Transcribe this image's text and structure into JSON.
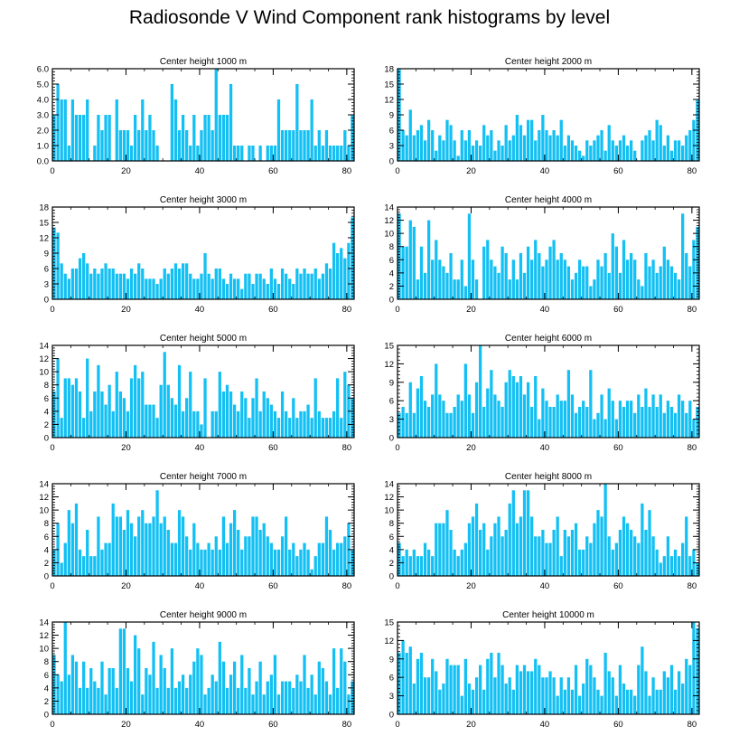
{
  "title": "Radiosonde V Wind Component rank histograms by level",
  "colors": {
    "bar": "#13c0f4",
    "bar_edge": "#0f9fce",
    "axis": "#000000"
  },
  "chart_data": [
    {
      "type": "bar",
      "title": "Center height 1000 m",
      "xlim": [
        0,
        82
      ],
      "ylim": [
        0,
        6
      ],
      "xticks": [
        0,
        20,
        40,
        60,
        80
      ],
      "yticks": [
        0,
        1,
        2,
        3,
        4,
        5,
        6
      ],
      "yticklabels": [
        "0.0",
        "1.0",
        "2.0",
        "3.0",
        "4.0",
        "5.0",
        "6.0"
      ],
      "values": [
        3,
        5,
        4,
        4,
        1,
        4,
        3,
        3,
        3,
        4,
        0,
        1,
        3,
        2,
        3,
        3,
        0,
        4,
        2,
        2,
        2,
        1,
        3,
        2,
        4,
        2,
        3,
        2,
        1,
        0,
        0,
        0,
        5,
        4,
        2,
        3,
        2,
        1,
        3,
        1,
        2,
        3,
        3,
        2,
        6,
        3,
        3,
        3,
        5,
        1,
        1,
        1,
        0,
        1,
        1,
        0,
        1,
        0,
        1,
        1,
        1,
        4,
        2,
        2,
        2,
        2,
        5,
        2,
        2,
        2,
        4,
        1,
        2,
        1,
        2,
        1,
        1,
        1,
        1,
        2,
        1,
        3
      ]
    },
    {
      "type": "bar",
      "title": "Center height 2000 m",
      "xlim": [
        0,
        82
      ],
      "ylim": [
        0,
        18
      ],
      "xticks": [
        0,
        20,
        40,
        60,
        80
      ],
      "yticks": [
        0,
        3,
        6,
        9,
        12,
        15,
        18
      ],
      "yticklabels": [
        "0",
        "3",
        "6",
        "9",
        "12",
        "15",
        "18"
      ],
      "values": [
        18,
        6,
        5,
        10,
        5,
        6,
        7,
        4,
        8,
        6,
        2,
        5,
        4,
        8,
        7,
        4,
        1,
        6,
        4,
        6,
        3,
        4,
        3,
        7,
        5,
        6,
        2,
        4,
        3,
        7,
        4,
        5,
        9,
        7,
        5,
        8,
        8,
        4,
        6,
        9,
        6,
        5,
        6,
        5,
        8,
        3,
        5,
        4,
        3,
        2,
        1,
        4,
        3,
        4,
        5,
        6,
        2,
        7,
        4,
        3,
        4,
        5,
        3,
        4,
        2,
        0,
        4,
        5,
        6,
        4,
        8,
        7,
        3,
        5,
        2,
        4,
        4,
        3,
        5,
        6,
        8,
        12
      ]
    },
    {
      "type": "bar",
      "title": "Center height 3000 m",
      "xlim": [
        0,
        82
      ],
      "ylim": [
        0,
        18
      ],
      "xticks": [
        0,
        20,
        40,
        60,
        80
      ],
      "yticks": [
        0,
        3,
        6,
        9,
        12,
        15,
        18
      ],
      "yticklabels": [
        "0",
        "3",
        "6",
        "9",
        "12",
        "15",
        "18"
      ],
      "values": [
        14,
        13,
        7,
        5,
        4,
        6,
        6,
        8,
        9,
        7,
        5,
        6,
        5,
        6,
        7,
        6,
        6,
        5,
        5,
        5,
        4,
        6,
        5,
        7,
        6,
        4,
        4,
        4,
        3,
        4,
        6,
        5,
        6,
        7,
        6,
        7,
        7,
        5,
        4,
        4,
        5,
        9,
        5,
        4,
        6,
        6,
        4,
        3,
        5,
        4,
        4,
        2,
        5,
        5,
        3,
        5,
        5,
        4,
        3,
        6,
        4,
        3,
        6,
        5,
        4,
        3,
        6,
        5,
        6,
        5,
        5,
        6,
        4,
        5,
        7,
        6,
        11,
        9,
        10,
        8,
        11,
        16
      ]
    },
    {
      "type": "bar",
      "title": "Center height 4000 m",
      "xlim": [
        0,
        82
      ],
      "ylim": [
        0,
        14
      ],
      "xticks": [
        0,
        20,
        40,
        60,
        80
      ],
      "yticks": [
        0,
        2,
        4,
        6,
        8,
        10,
        12,
        14
      ],
      "yticklabels": [
        "0",
        "2",
        "4",
        "6",
        "8",
        "10",
        "12",
        "14"
      ],
      "values": [
        13,
        8,
        8,
        12,
        11,
        3,
        8,
        4,
        12,
        6,
        9,
        6,
        5,
        4,
        7,
        3,
        3,
        6,
        2,
        13,
        6,
        3,
        0,
        8,
        9,
        6,
        5,
        4,
        8,
        7,
        3,
        6,
        3,
        7,
        4,
        8,
        6,
        9,
        7,
        5,
        6,
        8,
        9,
        6,
        7,
        6,
        5,
        3,
        4,
        6,
        5,
        5,
        2,
        3,
        6,
        5,
        7,
        4,
        10,
        8,
        4,
        9,
        6,
        7,
        6,
        3,
        2,
        7,
        5,
        6,
        4,
        5,
        8,
        6,
        5,
        4,
        3,
        13,
        7,
        5,
        9,
        11
      ]
    },
    {
      "type": "bar",
      "title": "Center height 5000 m",
      "xlim": [
        0,
        82
      ],
      "ylim": [
        0,
        14
      ],
      "xticks": [
        0,
        20,
        40,
        60,
        80
      ],
      "yticks": [
        0,
        2,
        4,
        6,
        8,
        10,
        12,
        14
      ],
      "yticklabels": [
        "0",
        "2",
        "4",
        "6",
        "8",
        "10",
        "12",
        "14"
      ],
      "values": [
        7,
        12,
        3,
        9,
        9,
        8,
        9,
        7,
        3,
        12,
        4,
        7,
        11,
        7,
        5,
        8,
        4,
        10,
        7,
        6,
        4,
        9,
        11,
        9,
        10,
        5,
        5,
        5,
        3,
        8,
        13,
        8,
        6,
        5,
        11,
        4,
        6,
        10,
        4,
        4,
        2,
        9,
        0,
        4,
        4,
        10,
        7,
        8,
        7,
        5,
        4,
        7,
        6,
        3,
        6,
        9,
        4,
        7,
        6,
        5,
        4,
        3,
        7,
        4,
        3,
        6,
        3,
        4,
        4,
        5,
        3,
        9,
        4,
        3,
        3,
        3,
        4,
        9,
        3,
        10,
        8,
        6
      ]
    },
    {
      "type": "bar",
      "title": "Center height 6000 m",
      "xlim": [
        0,
        82
      ],
      "ylim": [
        0,
        15
      ],
      "xticks": [
        0,
        20,
        40,
        60,
        80
      ],
      "yticks": [
        0,
        3,
        6,
        9,
        12,
        15
      ],
      "yticklabels": [
        "0",
        "3",
        "6",
        "9",
        "12",
        "15"
      ],
      "values": [
        4,
        5,
        4,
        9,
        4,
        8,
        10,
        6,
        5,
        7,
        12,
        7,
        6,
        4,
        4,
        5,
        7,
        6,
        12,
        7,
        4,
        9,
        15,
        5,
        8,
        11,
        7,
        6,
        5,
        9,
        11,
        10,
        9,
        10,
        7,
        9,
        5,
        10,
        3,
        8,
        6,
        5,
        5,
        7,
        6,
        6,
        11,
        7,
        4,
        5,
        6,
        5,
        11,
        3,
        4,
        7,
        3,
        8,
        6,
        3,
        6,
        5,
        6,
        6,
        4,
        7,
        5,
        8,
        5,
        7,
        5,
        7,
        4,
        6,
        5,
        4,
        7,
        6,
        4,
        6,
        3,
        5
      ]
    },
    {
      "type": "bar",
      "title": "Center height 7000 m",
      "xlim": [
        0,
        82
      ],
      "ylim": [
        0,
        14
      ],
      "xticks": [
        0,
        20,
        40,
        60,
        80
      ],
      "yticks": [
        0,
        2,
        4,
        6,
        8,
        10,
        12,
        14
      ],
      "yticklabels": [
        "0",
        "2",
        "4",
        "6",
        "8",
        "10",
        "12",
        "14"
      ],
      "values": [
        4,
        8,
        2,
        5,
        10,
        8,
        11,
        4,
        3,
        7,
        3,
        3,
        9,
        4,
        5,
        5,
        11,
        9,
        9,
        7,
        10,
        8,
        6,
        9,
        10,
        8,
        8,
        9,
        13,
        8,
        9,
        7,
        5,
        5,
        10,
        9,
        6,
        4,
        8,
        5,
        4,
        4,
        5,
        4,
        6,
        4,
        9,
        5,
        8,
        10,
        7,
        4,
        6,
        6,
        9,
        9,
        7,
        8,
        6,
        5,
        4,
        4,
        6,
        9,
        4,
        5,
        3,
        4,
        5,
        4,
        1,
        3,
        5,
        5,
        9,
        7,
        4,
        5,
        5,
        6,
        8,
        4
      ]
    },
    {
      "type": "bar",
      "title": "Center height 8000 m",
      "xlim": [
        0,
        82
      ],
      "ylim": [
        0,
        14
      ],
      "xticks": [
        0,
        20,
        40,
        60,
        80
      ],
      "yticks": [
        0,
        2,
        4,
        6,
        8,
        10,
        12,
        14
      ],
      "yticklabels": [
        "0",
        "2",
        "4",
        "6",
        "8",
        "10",
        "12",
        "14"
      ],
      "values": [
        5,
        3,
        4,
        3,
        4,
        3,
        3,
        5,
        4,
        3,
        8,
        8,
        8,
        10,
        7,
        4,
        3,
        4,
        5,
        8,
        9,
        11,
        7,
        8,
        4,
        6,
        8,
        9,
        6,
        7,
        11,
        13,
        8,
        9,
        13,
        13,
        9,
        6,
        6,
        7,
        5,
        5,
        7,
        9,
        3,
        7,
        6,
        7,
        8,
        4,
        4,
        6,
        5,
        8,
        10,
        9,
        14,
        6,
        4,
        5,
        7,
        9,
        8,
        7,
        6,
        5,
        11,
        7,
        10,
        6,
        4,
        2,
        3,
        6,
        3,
        4,
        3,
        5,
        9,
        3,
        4,
        2
      ]
    },
    {
      "type": "bar",
      "title": "Center height 9000 m",
      "xlim": [
        0,
        82
      ],
      "ylim": [
        0,
        14
      ],
      "xticks": [
        0,
        20,
        40,
        60,
        80
      ],
      "yticks": [
        0,
        2,
        4,
        6,
        8,
        10,
        12,
        14
      ],
      "yticklabels": [
        "0",
        "2",
        "4",
        "6",
        "8",
        "10",
        "12",
        "14"
      ],
      "values": [
        9,
        6,
        5,
        14,
        6,
        9,
        8,
        4,
        8,
        4,
        7,
        5,
        4,
        8,
        3,
        7,
        7,
        4,
        13,
        13,
        7,
        5,
        12,
        10,
        3,
        7,
        6,
        11,
        4,
        9,
        7,
        4,
        10,
        4,
        5,
        6,
        4,
        6,
        8,
        10,
        9,
        3,
        4,
        6,
        5,
        11,
        8,
        4,
        6,
        8,
        4,
        9,
        4,
        7,
        3,
        5,
        8,
        3,
        5,
        6,
        9,
        3,
        5,
        5,
        5,
        4,
        6,
        5,
        9,
        4,
        6,
        3,
        8,
        7,
        5,
        3,
        10,
        4,
        10,
        8,
        3,
        5
      ]
    },
    {
      "type": "bar",
      "title": "Center height 10000 m",
      "xlim": [
        0,
        82
      ],
      "ylim": [
        0,
        15
      ],
      "xticks": [
        0,
        20,
        40,
        60,
        80
      ],
      "yticks": [
        0,
        3,
        6,
        9,
        12,
        15
      ],
      "yticklabels": [
        "0",
        "3",
        "6",
        "9",
        "12",
        "15"
      ],
      "values": [
        10,
        12,
        10,
        11,
        5,
        9,
        10,
        6,
        6,
        9,
        7,
        4,
        5,
        9,
        8,
        8,
        8,
        3,
        9,
        5,
        4,
        6,
        8,
        4,
        9,
        10,
        6,
        10,
        8,
        5,
        6,
        4,
        8,
        7,
        8,
        7,
        7,
        9,
        8,
        6,
        6,
        7,
        6,
        3,
        6,
        4,
        6,
        4,
        8,
        3,
        5,
        9,
        8,
        6,
        4,
        3,
        10,
        7,
        6,
        3,
        8,
        5,
        4,
        4,
        3,
        8,
        11,
        7,
        3,
        6,
        4,
        4,
        7,
        6,
        8,
        4,
        7,
        5,
        9,
        8,
        15,
        14
      ]
    }
  ]
}
